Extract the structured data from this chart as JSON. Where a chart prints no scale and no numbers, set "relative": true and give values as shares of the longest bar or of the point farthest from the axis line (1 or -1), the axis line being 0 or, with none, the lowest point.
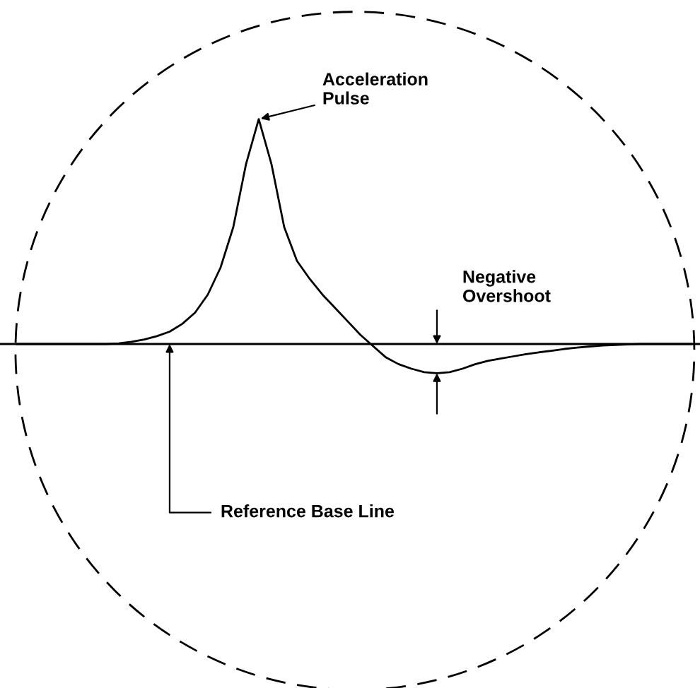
{
  "chart_data": {
    "type": "line",
    "relative": true,
    "color": "#000000",
    "marker": "none",
    "line_style": "solid",
    "categories": [
      null,
      null,
      null,
      null,
      null,
      null,
      null,
      null,
      null,
      null,
      null,
      null,
      null,
      null,
      null,
      null,
      null,
      null,
      null,
      null,
      null,
      null,
      null,
      null,
      null,
      null,
      null,
      null,
      null,
      null,
      null,
      null,
      null,
      null,
      null,
      null,
      null,
      null,
      null,
      null,
      null,
      null,
      null,
      null,
      null,
      null,
      null,
      null,
      null,
      null,
      null,
      null,
      null,
      null
    ],
    "values": [
      0,
      0,
      0,
      0,
      0,
      0,
      0,
      0,
      0.003,
      0.01,
      0.02,
      0.035,
      0.055,
      0.09,
      0.14,
      0.22,
      0.34,
      0.52,
      0.8,
      1,
      0.8,
      0.52,
      0.37,
      0.29,
      0.22,
      0.16,
      0.1,
      0.04,
      -0.01,
      -0.06,
      -0.09,
      -0.11,
      -0.125,
      -0.13,
      -0.125,
      -0.11,
      -0.09,
      -0.075,
      -0.065,
      -0.055,
      -0.045,
      -0.037,
      -0.03,
      -0.022,
      -0.016,
      -0.011,
      -0.007,
      -0.004,
      -0.002,
      0,
      0,
      0,
      0,
      0
    ],
    "annotations": [
      "Acceleration\nPulse",
      "Negative\nOvershoot",
      "Reference Base Line"
    ]
  }
}
